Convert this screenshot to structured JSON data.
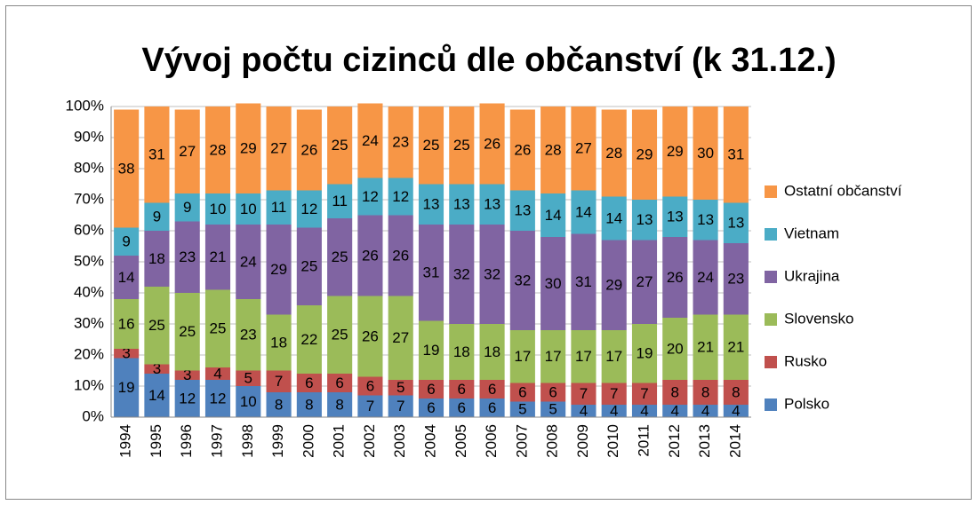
{
  "chart_data": {
    "type": "stacked_bar",
    "title": "Vývoj počtu cizinců dle občanství (k 31.12.)",
    "categories": [
      "1994",
      "1995",
      "1996",
      "1997",
      "1998",
      "1999",
      "2000",
      "2001",
      "2002",
      "2003",
      "2004",
      "2005",
      "2006",
      "2007",
      "2008",
      "2009",
      "2010",
      "2011",
      "2012",
      "2013",
      "2014"
    ],
    "series": [
      {
        "name": "Polsko",
        "color": "#4f81bd",
        "values": [
          19,
          14,
          12,
          12,
          10,
          8,
          8,
          8,
          7,
          7,
          6,
          6,
          6,
          5,
          5,
          4,
          4,
          4,
          4,
          4,
          4
        ]
      },
      {
        "name": "Rusko",
        "color": "#c0504d",
        "values": [
          3,
          3,
          3,
          4,
          5,
          7,
          6,
          6,
          6,
          5,
          6,
          6,
          6,
          6,
          6,
          7,
          7,
          7,
          8,
          8,
          8
        ]
      },
      {
        "name": "Slovensko",
        "color": "#9bbb59",
        "values": [
          16,
          25,
          25,
          25,
          23,
          18,
          22,
          25,
          26,
          27,
          19,
          18,
          18,
          17,
          17,
          17,
          17,
          19,
          20,
          21,
          21
        ]
      },
      {
        "name": "Ukrajina",
        "color": "#8064a2",
        "values": [
          14,
          18,
          23,
          21,
          24,
          29,
          25,
          25,
          26,
          26,
          31,
          32,
          32,
          32,
          30,
          31,
          29,
          27,
          26,
          24,
          23
        ]
      },
      {
        "name": "Vietnam",
        "color": "#4bacc6",
        "values": [
          9,
          9,
          9,
          10,
          10,
          11,
          12,
          11,
          12,
          12,
          13,
          13,
          13,
          13,
          14,
          14,
          14,
          13,
          13,
          13,
          13
        ]
      },
      {
        "name": "Ostatní občanství",
        "color": "#f79646",
        "values": [
          38,
          31,
          27,
          28,
          29,
          27,
          26,
          25,
          24,
          23,
          25,
          25,
          26,
          26,
          28,
          27,
          28,
          29,
          29,
          30,
          31
        ]
      }
    ],
    "ylim": [
      0,
      100
    ],
    "yticks": [
      {
        "value": 0,
        "label": "0%"
      },
      {
        "value": 10,
        "label": "10%"
      },
      {
        "value": 20,
        "label": "20%"
      },
      {
        "value": 30,
        "label": "30%"
      },
      {
        "value": 40,
        "label": "40%"
      },
      {
        "value": 50,
        "label": "50%"
      },
      {
        "value": 60,
        "label": "60%"
      },
      {
        "value": 70,
        "label": "70%"
      },
      {
        "value": 80,
        "label": "80%"
      },
      {
        "value": 90,
        "label": "90%"
      },
      {
        "value": 100,
        "label": "100%"
      }
    ],
    "grid": true,
    "legend": "right"
  }
}
